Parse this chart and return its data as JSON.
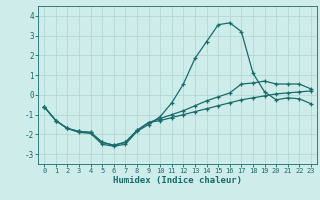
{
  "xlabel": "Humidex (Indice chaleur)",
  "background_color": "#ceecea",
  "grid_color": "#aed4d2",
  "line_color": "#1a6b6b",
  "xlim": [
    -0.5,
    23.5
  ],
  "ylim": [
    -3.5,
    4.5
  ],
  "xticks": [
    0,
    1,
    2,
    3,
    4,
    5,
    6,
    7,
    8,
    9,
    10,
    11,
    12,
    13,
    14,
    15,
    16,
    17,
    18,
    19,
    20,
    21,
    22,
    23
  ],
  "yticks": [
    -3,
    -2,
    -1,
    0,
    1,
    2,
    3,
    4
  ],
  "line1_x": [
    0,
    1,
    2,
    3,
    4,
    5,
    6,
    7,
    8,
    9,
    10,
    11,
    12,
    13,
    14,
    15,
    16,
    17,
    18,
    19,
    20,
    21,
    22,
    23
  ],
  "line1_y": [
    -0.6,
    -1.3,
    -1.7,
    -1.9,
    -1.95,
    -2.5,
    -2.6,
    -2.5,
    -1.85,
    -1.5,
    -1.1,
    -0.4,
    0.55,
    1.85,
    2.7,
    3.55,
    3.65,
    3.2,
    1.1,
    0.15,
    -0.25,
    -0.15,
    -0.2,
    -0.45
  ],
  "line2_x": [
    0,
    1,
    2,
    3,
    4,
    5,
    6,
    7,
    8,
    9,
    10,
    11,
    12,
    13,
    14,
    15,
    16,
    17,
    18,
    19,
    20,
    21,
    22,
    23
  ],
  "line2_y": [
    -0.6,
    -1.3,
    -1.7,
    -1.85,
    -1.9,
    -2.4,
    -2.55,
    -2.4,
    -1.8,
    -1.4,
    -1.2,
    -1.0,
    -0.8,
    -0.55,
    -0.3,
    -0.1,
    0.1,
    0.55,
    0.6,
    0.7,
    0.55,
    0.55,
    0.55,
    0.3
  ],
  "line3_x": [
    0,
    1,
    2,
    3,
    4,
    5,
    6,
    7,
    8,
    9,
    10,
    11,
    12,
    13,
    14,
    15,
    16,
    17,
    18,
    19,
    20,
    21,
    22,
    23
  ],
  "line3_y": [
    -0.6,
    -1.3,
    -1.7,
    -1.85,
    -1.9,
    -2.4,
    -2.55,
    -2.4,
    -1.8,
    -1.4,
    -1.3,
    -1.15,
    -1.0,
    -0.85,
    -0.7,
    -0.55,
    -0.4,
    -0.25,
    -0.15,
    -0.05,
    0.05,
    0.1,
    0.15,
    0.2
  ]
}
